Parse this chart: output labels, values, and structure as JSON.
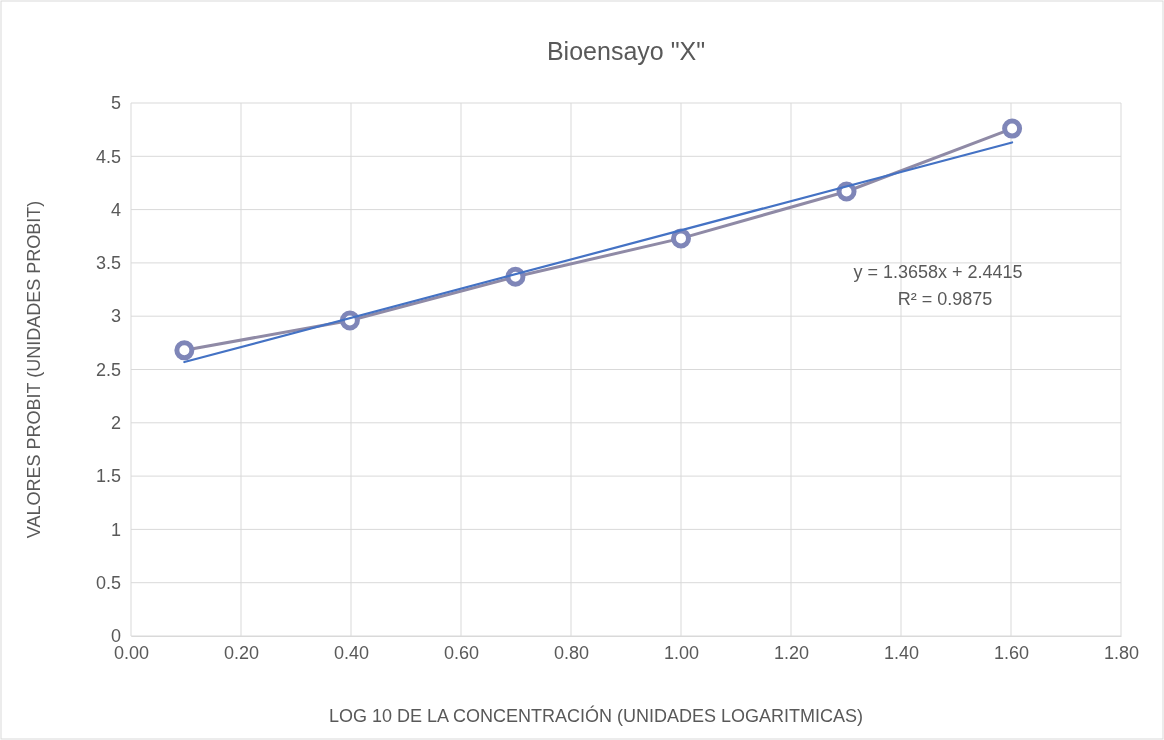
{
  "chart_data": {
    "type": "line",
    "title": "Bioensayo \"X\"",
    "xlabel": "LOG 10 DE LA CONCENTRACIÓN (UNIDADES LOGARITMICAS)",
    "ylabel": "VALORES PROBIT (UNIDADES PROBIT)",
    "x": [
      0.097,
      0.398,
      0.699,
      1.0,
      1.301,
      1.602
    ],
    "series": [
      {
        "color": "#8f8aa6",
        "values": [
          2.68,
          2.96,
          3.37,
          3.73,
          4.17,
          4.76
        ],
        "marker": "circle"
      },
      {
        "type": "line",
        "color": "#4472c4",
        "x": [
          0.097,
          1.602
        ],
        "values": [
          2.57,
          4.63
        ],
        "marker": "none"
      }
    ],
    "xlim": [
      0,
      1.8
    ],
    "xticks": [
      {
        "value": 0,
        "label": "0.00"
      },
      {
        "value": 0.2,
        "label": "0.20"
      },
      {
        "value": 0.4,
        "label": "0.40"
      },
      {
        "value": 0.6,
        "label": "0.60"
      },
      {
        "value": 0.8,
        "label": "0.80"
      },
      {
        "value": 1,
        "label": "1.00"
      },
      {
        "value": 1.2,
        "label": "1.20"
      },
      {
        "value": 1.4,
        "label": "1.40"
      },
      {
        "value": 1.6,
        "label": "1.60"
      },
      {
        "value": 1.8,
        "label": "1.80"
      }
    ],
    "ylim": [
      0,
      5
    ],
    "yticks": [
      0,
      0.5,
      1,
      1.5,
      2,
      2.5,
      3,
      3.5,
      4,
      4.5,
      5
    ],
    "grid": true,
    "line_style": "solid",
    "annotations": [
      "y = 1.3658x + 2.4415",
      "R² = 0.9875"
    ]
  }
}
